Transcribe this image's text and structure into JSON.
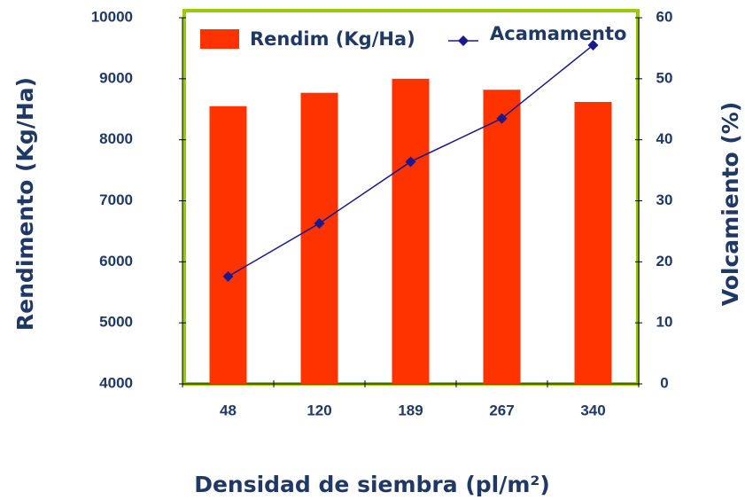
{
  "chart_data": {
    "type": "bar",
    "x_label": "Densidad de siembra (pl/m²)",
    "y_label": "Rendimento  (Kg/Ha)",
    "y2_label": "Volcamiento (%)",
    "categories": [
      "48",
      "120",
      "189",
      "267",
      "340"
    ],
    "series": [
      {
        "name": "Rendim (Kg/Ha)",
        "type": "bar",
        "color": "#ff3300",
        "values": [
          8550,
          8770,
          9000,
          8820,
          8620
        ]
      },
      {
        "name": "Acamamento",
        "type": "line",
        "axis": "y2",
        "color": "#1a1a8c",
        "values": [
          17.6,
          26.3,
          36.4,
          43.5,
          55.5
        ]
      }
    ],
    "ylim": [
      4000,
      10000
    ],
    "yticks": [
      4000,
      5000,
      6000,
      7000,
      8000,
      9000,
      10000
    ],
    "y2lim": [
      0,
      60
    ],
    "y2ticks": [
      0,
      10,
      20,
      30,
      40,
      50,
      60
    ],
    "legend": "top",
    "frame_color": "#99cc00"
  }
}
